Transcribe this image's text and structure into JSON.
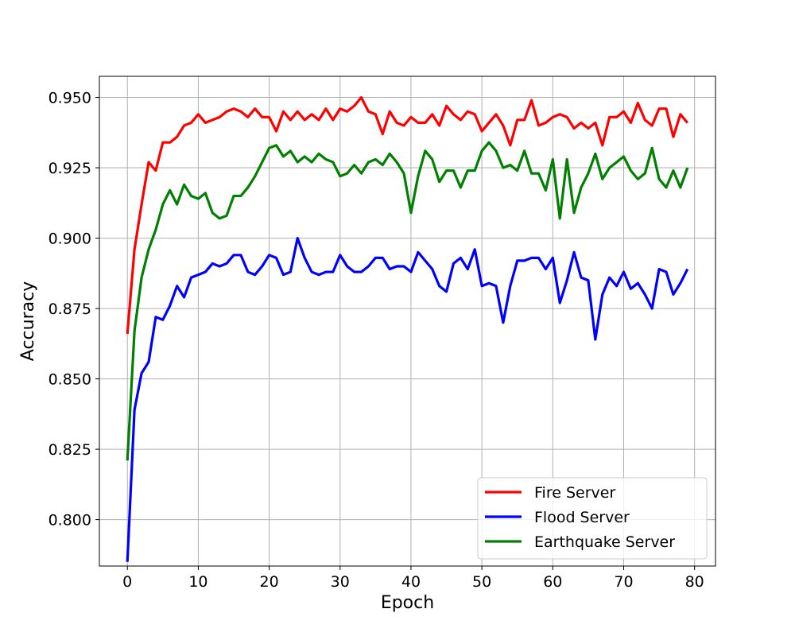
{
  "chart_data": {
    "type": "line",
    "xlabel": "Epoch",
    "ylabel": "Accuracy",
    "xlim": [
      -3.95,
      82.95
    ],
    "ylim": [
      0.7835,
      0.9575
    ],
    "xticks": [
      0,
      10,
      20,
      30,
      40,
      50,
      60,
      70,
      80
    ],
    "yticks": [
      0.8,
      0.825,
      0.85,
      0.875,
      0.9,
      0.925,
      0.95
    ],
    "ytick_labels": [
      "0.800",
      "0.825",
      "0.850",
      "0.875",
      "0.900",
      "0.925",
      "0.950"
    ],
    "grid": true,
    "legend_position": "lower-right",
    "series": [
      {
        "name": "Fire Server",
        "color": "#ff0000",
        "values": [
          0.866,
          0.896,
          0.912,
          0.927,
          0.924,
          0.934,
          0.934,
          0.936,
          0.94,
          0.941,
          0.944,
          0.941,
          0.942,
          0.943,
          0.945,
          0.946,
          0.945,
          0.943,
          0.946,
          0.943,
          0.943,
          0.938,
          0.945,
          0.942,
          0.945,
          0.942,
          0.944,
          0.942,
          0.946,
          0.942,
          0.946,
          0.945,
          0.947,
          0.95,
          0.945,
          0.944,
          0.937,
          0.945,
          0.941,
          0.94,
          0.943,
          0.941,
          0.941,
          0.944,
          0.94,
          0.947,
          0.944,
          0.942,
          0.945,
          0.944,
          0.938,
          0.941,
          0.944,
          0.94,
          0.933,
          0.942,
          0.942,
          0.949,
          0.94,
          0.941,
          0.943,
          0.944,
          0.943,
          0.939,
          0.941,
          0.939,
          0.941,
          0.933,
          0.943,
          0.943,
          0.945,
          0.941,
          0.948,
          0.942,
          0.94,
          0.946,
          0.946,
          0.936,
          0.944,
          0.941
        ]
      },
      {
        "name": "Flood Server",
        "color": "#0000ff",
        "values": [
          0.785,
          0.839,
          0.852,
          0.856,
          0.872,
          0.871,
          0.876,
          0.883,
          0.879,
          0.886,
          0.887,
          0.888,
          0.891,
          0.89,
          0.891,
          0.894,
          0.894,
          0.888,
          0.887,
          0.89,
          0.894,
          0.893,
          0.887,
          0.888,
          0.9,
          0.893,
          0.888,
          0.887,
          0.888,
          0.888,
          0.894,
          0.89,
          0.888,
          0.888,
          0.89,
          0.893,
          0.893,
          0.889,
          0.89,
          0.89,
          0.888,
          0.895,
          0.892,
          0.889,
          0.883,
          0.881,
          0.891,
          0.893,
          0.889,
          0.896,
          0.883,
          0.884,
          0.883,
          0.87,
          0.883,
          0.892,
          0.892,
          0.893,
          0.893,
          0.889,
          0.893,
          0.877,
          0.885,
          0.895,
          0.886,
          0.885,
          0.864,
          0.88,
          0.886,
          0.883,
          0.888,
          0.882,
          0.884,
          0.88,
          0.875,
          0.889,
          0.888,
          0.88,
          0.884,
          0.889
        ]
      },
      {
        "name": "Earthquake Server",
        "color": "#008000",
        "values": [
          0.821,
          0.867,
          0.886,
          0.896,
          0.903,
          0.912,
          0.917,
          0.912,
          0.919,
          0.915,
          0.914,
          0.916,
          0.909,
          0.907,
          0.908,
          0.915,
          0.915,
          0.918,
          0.922,
          0.927,
          0.932,
          0.933,
          0.929,
          0.931,
          0.927,
          0.929,
          0.927,
          0.93,
          0.928,
          0.927,
          0.922,
          0.923,
          0.926,
          0.923,
          0.927,
          0.928,
          0.926,
          0.93,
          0.927,
          0.923,
          0.909,
          0.922,
          0.931,
          0.928,
          0.92,
          0.924,
          0.924,
          0.918,
          0.924,
          0.924,
          0.931,
          0.934,
          0.931,
          0.925,
          0.926,
          0.924,
          0.931,
          0.923,
          0.923,
          0.917,
          0.928,
          0.907,
          0.928,
          0.909,
          0.918,
          0.923,
          0.93,
          0.921,
          0.925,
          0.927,
          0.929,
          0.924,
          0.921,
          0.923,
          0.932,
          0.921,
          0.918,
          0.924,
          0.918,
          0.925
        ]
      }
    ]
  }
}
